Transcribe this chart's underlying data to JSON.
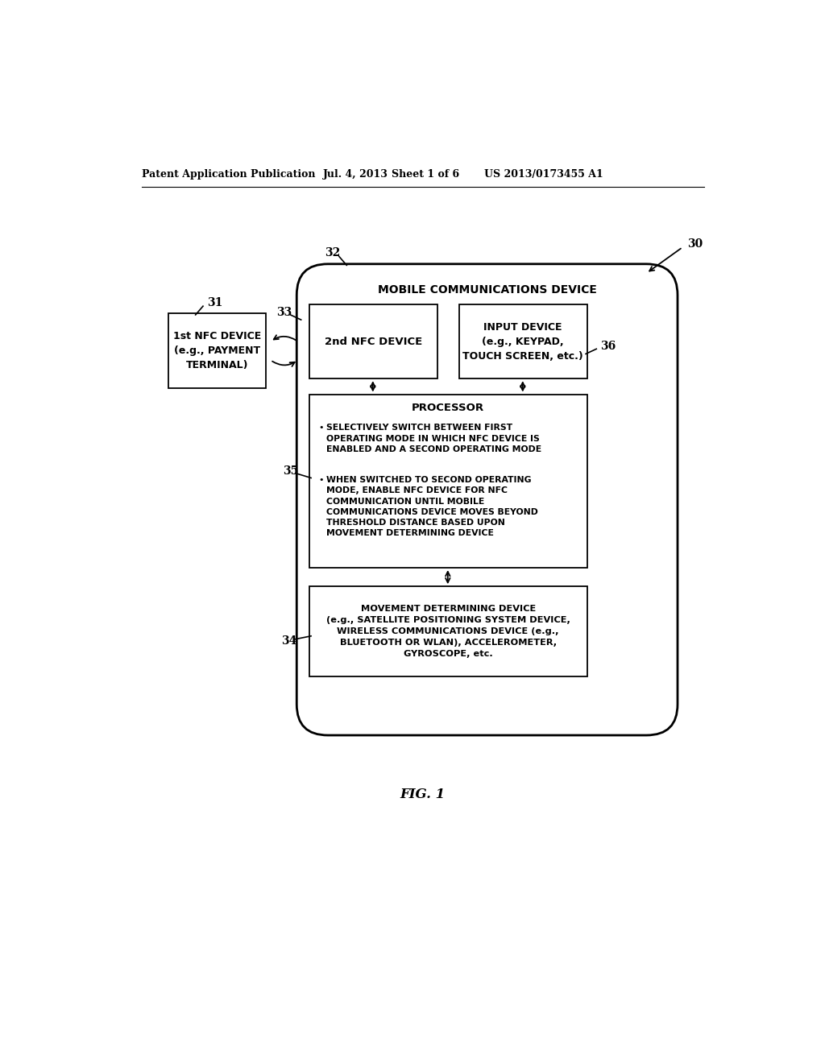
{
  "bg_color": "#ffffff",
  "header_line1": "Patent Application Publication",
  "header_line2": "Jul. 4, 2013",
  "header_line3": "Sheet 1 of 6",
  "header_line4": "US 2013/0173455 A1",
  "fig_label": "FIG. 1",
  "label_30": "30",
  "label_31": "31",
  "label_32": "32",
  "label_33": "33",
  "label_34": "34",
  "label_35": "35",
  "label_36": "36",
  "nfc1_title": "1st NFC DEVICE\n(e.g., PAYMENT\nTERMINAL)",
  "mobile_title": "MOBILE COMMUNICATIONS DEVICE",
  "nfc2_title": "2nd NFC DEVICE",
  "input_title": "INPUT DEVICE\n(e.g., KEYPAD,\nTOUCH SCREEN, etc.)",
  "processor_title": "PROCESSOR",
  "processor_bullet1": "SELECTIVELY SWITCH BETWEEN FIRST\nOPERATING MODE IN WHICH NFC DEVICE IS\nENABLED AND A SECOND OPERATING MODE",
  "processor_bullet2": "WHEN SWITCHED TO SECOND OPERATING\nMODE, ENABLE NFC DEVICE FOR NFC\nCOMMUNICATION UNTIL MOBILE\nCOMMUNICATIONS DEVICE MOVES BEYOND\nTHRESHOLD DISTANCE BASED UPON\nMOVEMENT DETERMINING DEVICE",
  "movement_title": "MOVEMENT DETERMINING DEVICE\n(e.g., SATELLITE POSITIONING SYSTEM DEVICE,\nWIRELESS COMMUNICATIONS DEVICE (e.g.,\nBLUETOOTH OR WLAN), ACCELEROMETER,\nGYROSCOPE, etc."
}
